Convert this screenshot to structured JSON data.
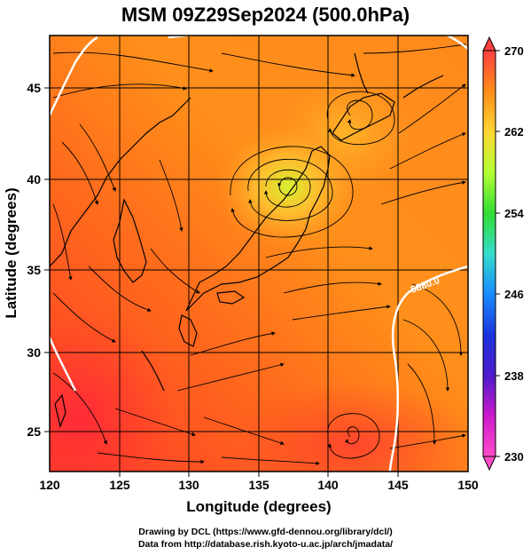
{
  "title": "MSM 09Z29Sep2024 (500.0hPa)",
  "map": {
    "xlabel": "Longitude (degrees)",
    "ylabel": "Latitude  (degrees)",
    "lon_range": [
      120,
      150
    ],
    "lat_range": [
      22.5,
      48
    ],
    "lon_ticks": [
      "120",
      "125",
      "130",
      "135",
      "140",
      "145",
      "150"
    ],
    "lat_ticks": [
      "25",
      "30",
      "35",
      "40",
      "45"
    ],
    "contour_label": "5880.0"
  },
  "colorbar": {
    "range": [
      230,
      270
    ],
    "tick_labels": [
      "270",
      "262",
      "254",
      "246",
      "238",
      "230"
    ],
    "colors": [
      "#ff4040",
      "#ff8c1a",
      "#ffd633",
      "#b4ff33",
      "#33dd33",
      "#33ddcc",
      "#1a8cff",
      "#1a33dd",
      "#4d1acc",
      "#cc1acc",
      "#ff4dcc"
    ]
  },
  "credits": {
    "line1": "Drawing by DCL (https://www.gfd-dennou.org/library/dcl/)",
    "line2": "Data from http://database.rish.kyoto-u.ac.jp/arch/jmadata/"
  }
}
